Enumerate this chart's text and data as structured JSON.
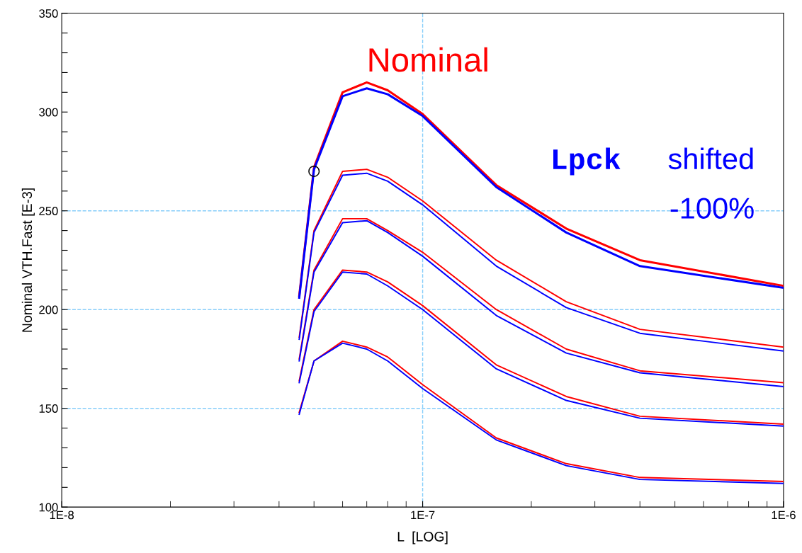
{
  "chart_data": {
    "type": "line",
    "xlabel": "L  [LOG]",
    "ylabel": "Nominal VTH.Fast [E-3]",
    "x": [
      4.55e-08,
      5e-08,
      6e-08,
      7e-08,
      8e-08,
      1e-07,
      1.6e-07,
      2.5e-07,
      4e-07,
      1e-06
    ],
    "series": [
      {
        "color": "#ff0000",
        "values": [
          207,
          272,
          310,
          315,
          311,
          299,
          263,
          241,
          225,
          212
        ]
      },
      {
        "color": "#0000ff",
        "values": [
          206,
          271,
          308,
          312,
          309,
          298,
          262,
          239,
          222,
          211
        ]
      },
      {
        "color": "#ff0000",
        "values": [
          186,
          240,
          270,
          271,
          267,
          255,
          225,
          204,
          190,
          181
        ]
      },
      {
        "color": "#0000ff",
        "values": [
          185,
          239,
          268,
          269,
          265,
          253,
          222,
          201,
          188,
          179
        ]
      },
      {
        "color": "#ff0000",
        "values": [
          175,
          220,
          246,
          246,
          240,
          229,
          200,
          180,
          169,
          163
        ]
      },
      {
        "color": "#0000ff",
        "values": [
          174,
          219,
          244,
          245,
          239,
          227,
          197,
          178,
          168,
          161
        ]
      },
      {
        "color": "#ff0000",
        "values": [
          164,
          200,
          220,
          219,
          214,
          202,
          172,
          156,
          146,
          142
        ]
      },
      {
        "color": "#0000ff",
        "values": [
          163,
          199,
          219,
          218,
          212,
          200,
          170,
          154,
          145,
          141
        ]
      },
      {
        "color": "#ff0000",
        "values": [
          148,
          174,
          184,
          181,
          176,
          162,
          135,
          122,
          115,
          113
        ]
      },
      {
        "color": "#0000ff",
        "values": [
          147,
          174,
          183,
          180,
          174,
          160,
          134,
          121,
          114,
          112
        ]
      },
      {
        "type": "scatter",
        "color": "#000000",
        "marker": "circle",
        "x": [
          5e-08
        ],
        "values": [
          270
        ]
      }
    ],
    "log": "x",
    "xlim": [
      1e-08,
      1e-06
    ],
    "xticks": [
      {
        "value": 1e-08,
        "label": "1E-8"
      },
      {
        "value": 1e-07,
        "label": "1E-7"
      },
      {
        "value": 1e-06,
        "label": "1E-6"
      }
    ],
    "ylim": [
      100,
      350
    ],
    "yticks": [
      100,
      {
        "value": 110,
        "label": null
      },
      {
        "value": 120,
        "label": null
      },
      {
        "value": 130,
        "label": null
      },
      {
        "value": 140,
        "label": null
      },
      150,
      {
        "value": 160,
        "label": null
      },
      {
        "value": 170,
        "label": null
      },
      {
        "value": 180,
        "label": null
      },
      {
        "value": 190,
        "label": null
      },
      200,
      {
        "value": 210,
        "label": null
      },
      {
        "value": 220,
        "label": null
      },
      {
        "value": 230,
        "label": null
      },
      {
        "value": 240,
        "label": null
      },
      250,
      {
        "value": 260,
        "label": null
      },
      {
        "value": 270,
        "label": null
      },
      {
        "value": 280,
        "label": null
      },
      {
        "value": 290,
        "label": null
      },
      300,
      {
        "value": 310,
        "label": null
      },
      {
        "value": 320,
        "label": null
      },
      {
        "value": 330,
        "label": null
      },
      {
        "value": 340,
        "label": null
      },
      350
    ],
    "ref_lines": [
      {
        "axis": "y",
        "value": 150,
        "color": "#87cefa",
        "line_style": "dashed"
      },
      {
        "axis": "y",
        "value": 200,
        "color": "#87cefa",
        "line_style": "dashed"
      },
      {
        "axis": "y",
        "value": 250,
        "color": "#87cefa",
        "line_style": "dashed"
      },
      {
        "axis": "x",
        "value": 1e-07,
        "color": "#87cefa",
        "line_style": "dashed"
      }
    ],
    "annotations": [
      {
        "text": "Nominal",
        "x": 7e-08,
        "y": 315
      },
      "Lpck shifted -100%"
    ],
    "grid": false,
    "legend": false
  }
}
